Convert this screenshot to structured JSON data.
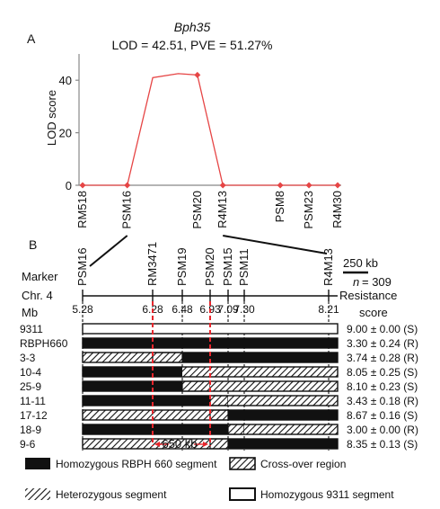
{
  "panel_a": {
    "label": "A",
    "title": "Bph35",
    "subtitle": "LOD = 42.51, PVE = 51.27%",
    "ylabel": "LOD score"
  },
  "panel_b": {
    "label": "B",
    "marker_label": "Marker",
    "chr_label": "Chr. 4",
    "mb_label": "Mb",
    "resistance_label": "Resistance",
    "score_label": "score",
    "scale_label": "250 kb",
    "n_label": "n",
    "n_value": "= 309",
    "interval_label": "650 kb"
  },
  "legend": [
    {
      "key": "homozygous_rbph",
      "label": "Homozygous RBPH 660 segment"
    },
    {
      "key": "crossover",
      "label": "Cross-over region"
    },
    {
      "key": "heterozygous",
      "label": "Heterozygous segment"
    },
    {
      "key": "homozygous_9311",
      "label": "Homozygous 9311 segment"
    }
  ],
  "colors": {
    "lod_line": "#e64545",
    "lod_marker": "#e64545",
    "interval_line": "#e8262c",
    "black": "#111111"
  },
  "chart_data": [
    {
      "type": "line",
      "panel": "A",
      "title": "Bph35",
      "subtitle": "LOD = 42.51, PVE = 51.27%",
      "xlabel": "",
      "ylabel": "LOD score",
      "ylim": [
        0,
        50
      ],
      "yticks": [
        0,
        20,
        40
      ],
      "categories": [
        "RM518",
        "PSM16",
        "",
        "",
        "PSM20",
        "R4M13",
        "PSM8",
        "PSM23",
        "R4M30"
      ],
      "x": [
        0,
        1.4,
        2.2,
        3.0,
        3.6,
        4.4,
        6.2,
        7.1,
        8.0
      ],
      "values": [
        0,
        0,
        41,
        42.5,
        42,
        0,
        0,
        0,
        0
      ],
      "marked_x": [
        0,
        1.4,
        3.6,
        4.4,
        6.2,
        7.1,
        8.0
      ]
    },
    {
      "type": "table",
      "panel": "B",
      "markers": [
        {
          "name": "PSM16",
          "mb": "5.28"
        },
        {
          "name": "RM3471",
          "mb": "6.28"
        },
        {
          "name": "PSM19",
          "mb": "6.48"
        },
        {
          "name": "PSM20",
          "mb": "6.93"
        },
        {
          "name": "PSM15",
          "mb": "7.09"
        },
        {
          "name": "PSM11",
          "mb": "7.30"
        },
        {
          "name": "R4M13",
          "mb": "8.21"
        }
      ],
      "interval_markers": [
        "RM3471",
        "PSM20"
      ],
      "rows": [
        {
          "line": "9311",
          "score": "9.00 ± 0.00 (S)",
          "segments": [
            "w",
            "w",
            "w",
            "w",
            "w",
            "w"
          ]
        },
        {
          "line": "RBPH660",
          "score": "3.30 ± 0.24 (R)",
          "segments": [
            "b",
            "b",
            "b",
            "b",
            "b",
            "b"
          ]
        },
        {
          "line": "3-3",
          "score": "3.74 ± 0.28 (R)",
          "segments": [
            "h",
            "x",
            "b",
            "b",
            "b",
            "b"
          ]
        },
        {
          "line": "10-4",
          "score": "8.05 ± 0.25 (S)",
          "segments": [
            "b",
            "b",
            "h",
            "h",
            "h",
            "h"
          ]
        },
        {
          "line": "25-9",
          "score": "8.10 ± 0.23 (S)",
          "segments": [
            "b",
            "b",
            "x",
            "h",
            "h",
            "h"
          ]
        },
        {
          "line": "11-11",
          "score": "3.43 ± 0.18 (R)",
          "segments": [
            "b",
            "b",
            "b",
            "x",
            "h",
            "h"
          ]
        },
        {
          "line": "17-12",
          "score": "8.67 ± 0.16 (S)",
          "segments": [
            "h",
            "h",
            "h",
            "x",
            "b",
            "b"
          ]
        },
        {
          "line": "18-9",
          "score": "3.00 ± 0.00 (R)",
          "segments": [
            "b",
            "b",
            "b",
            "b",
            "x",
            "h"
          ]
        },
        {
          "line": "9-6",
          "score": "8.35 ± 0.13 (S)",
          "segments": [
            "h",
            "h",
            "h",
            "x",
            "b",
            "b"
          ]
        }
      ]
    }
  ]
}
